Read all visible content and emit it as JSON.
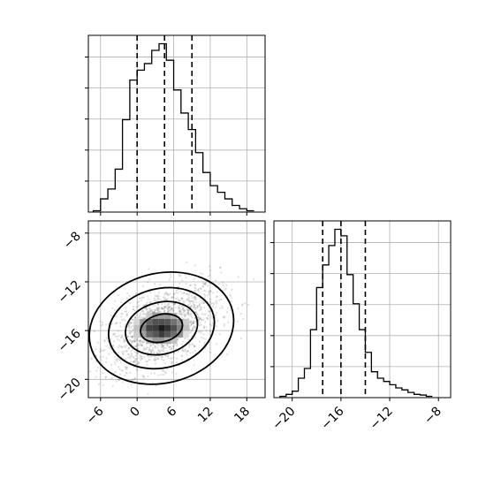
{
  "chart_data": {
    "type": "corner",
    "grid": true,
    "variables": [
      {
        "range": [
          -8,
          21
        ],
        "ticks": [
          -6,
          0,
          6,
          12,
          18
        ],
        "tick_labels": [
          "−6",
          "0",
          "6",
          "12",
          "18"
        ],
        "quantiles": [
          0.0,
          4.5,
          9.0
        ],
        "histogram": {
          "edges": [
            -7.2,
            -6.0,
            -4.8,
            -3.6,
            -2.4,
            -1.2,
            0.0,
            1.2,
            2.4,
            3.6,
            4.8,
            6.0,
            7.2,
            8.4,
            9.6,
            10.8,
            12.0,
            13.2,
            14.4,
            15.6,
            16.8,
            18.0,
            19.2
          ],
          "counts": [
            2,
            20,
            35,
            65,
            140,
            200,
            215,
            225,
            245,
            255,
            230,
            185,
            150,
            125,
            90,
            60,
            40,
            30,
            20,
            10,
            5,
            2
          ]
        }
      },
      {
        "range": [
          -21.5,
          -7
        ],
        "ticks": [
          -20,
          -16,
          -12,
          -8
        ],
        "tick_labels": [
          "−20",
          "−16",
          "−12",
          "−8"
        ],
        "quantiles": [
          -17.5,
          -16.0,
          -14.0
        ],
        "histogram": {
          "edges": [
            -21.0,
            -20.5,
            -20.0,
            -19.5,
            -19.0,
            -18.5,
            -18.0,
            -17.5,
            -17.0,
            -16.5,
            -16.0,
            -15.5,
            -15.0,
            -14.5,
            -14.0,
            -13.5,
            -13.0,
            -12.5,
            -12.0,
            -11.5,
            -11.0,
            -10.5,
            -10.0,
            -9.5,
            -9.0,
            -8.5
          ],
          "counts": [
            2,
            5,
            10,
            30,
            45,
            105,
            170,
            205,
            235,
            260,
            250,
            190,
            145,
            105,
            70,
            40,
            30,
            25,
            20,
            15,
            12,
            8,
            5,
            4,
            2
          ]
        }
      }
    ],
    "joint": {
      "yticks": [
        -8,
        -12,
        -16,
        -20
      ],
      "ytick_labels": [
        "−8",
        "−12",
        "−16",
        "−20"
      ],
      "center": [
        4.0,
        -15.8
      ],
      "contour_levels": [
        {
          "rx": 3.5,
          "ry": 0.9
        },
        {
          "rx": 6.0,
          "ry": 1.7
        },
        {
          "rx": 8.8,
          "ry": 2.6
        },
        {
          "rx": 12.0,
          "ry": 3.6
        }
      ]
    }
  }
}
